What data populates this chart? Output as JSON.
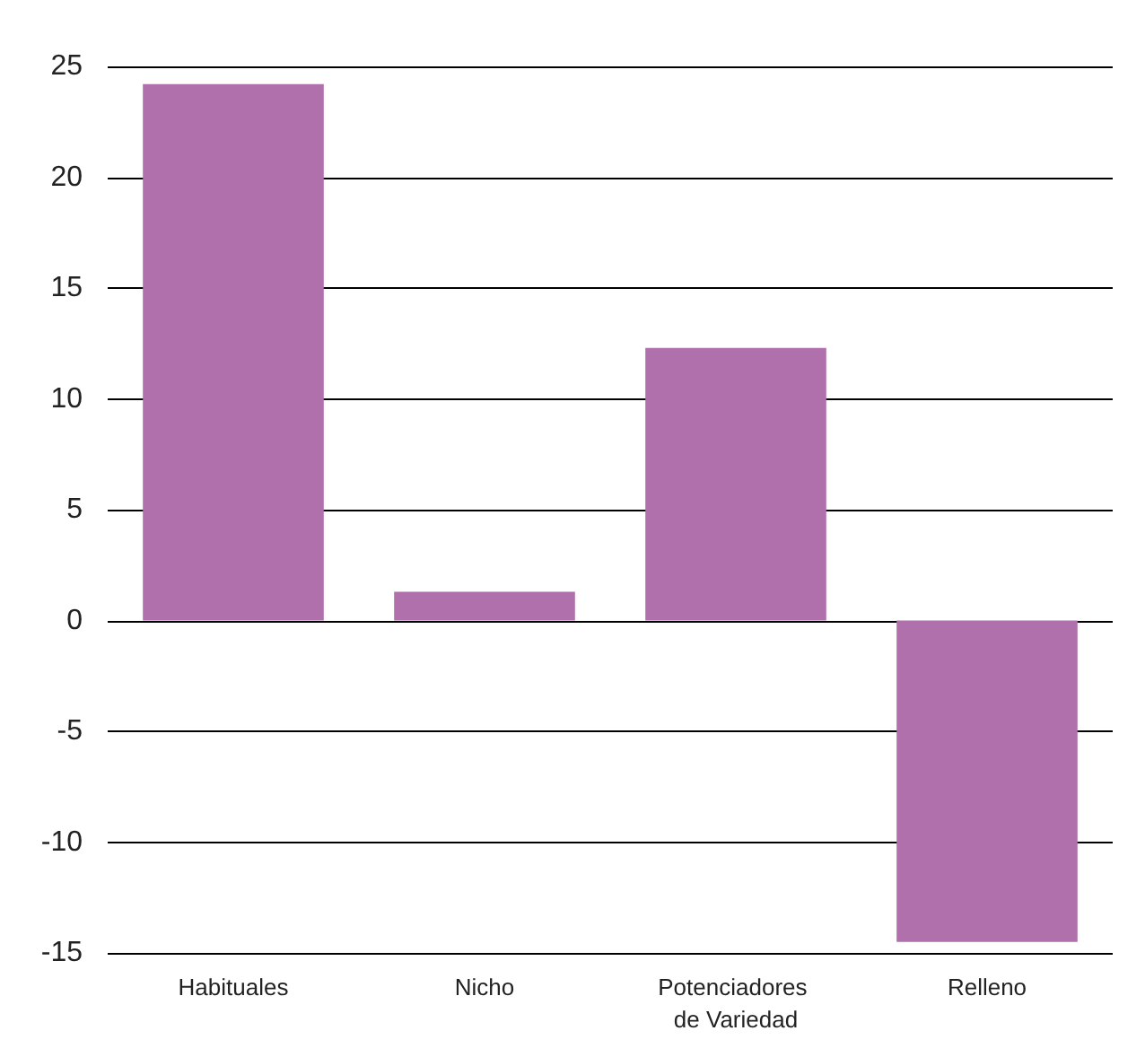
{
  "chart_data": {
    "type": "bar",
    "categories": [
      "Habituales",
      "Nicho",
      "Potenciadores de Variedad",
      "Relleno"
    ],
    "values": [
      24.2,
      1.3,
      12.3,
      -14.5
    ],
    "color": "#b070ac",
    "ylim": [
      -15,
      25
    ],
    "yticks": [
      -15,
      -10,
      -5,
      0,
      5,
      10,
      15,
      20,
      25
    ],
    "grid": "y"
  }
}
